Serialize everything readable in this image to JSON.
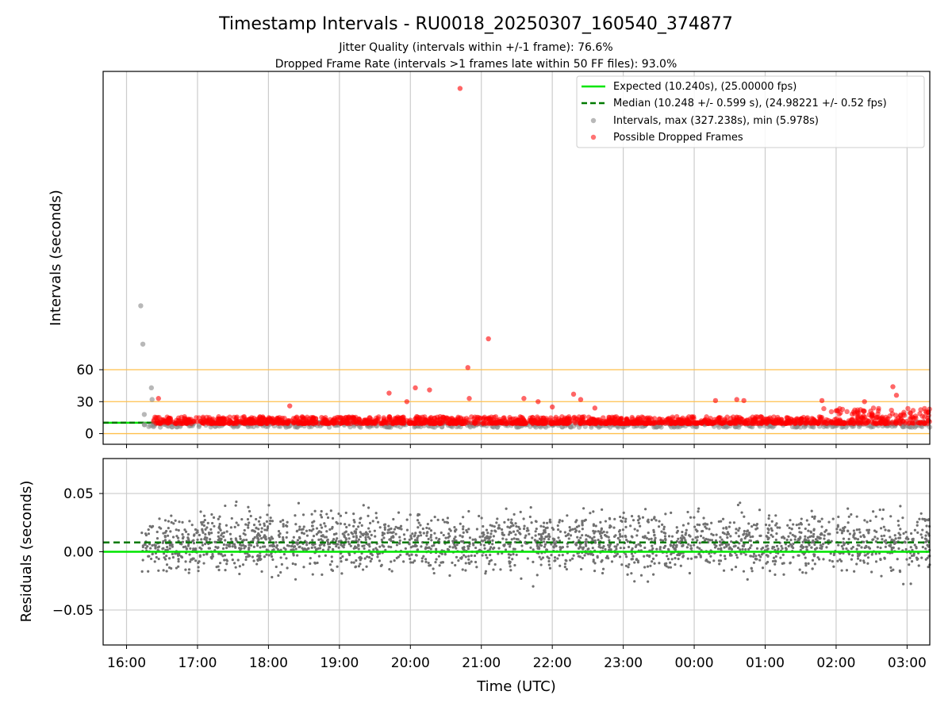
{
  "colors": {
    "expected": "#00e600",
    "median": "#007a00",
    "intervals": "#888888",
    "dropped": "#ff0000",
    "threshold": "#ffc04c",
    "grid": "#cccccc",
    "residuals": "#707070"
  },
  "chart_data": [
    {
      "type": "scatter",
      "title": "Timestamp Intervals - RU0018_20250307_160540_374877",
      "subtitle1": "Jitter Quality (intervals within +/-1 frame): 76.6%",
      "subtitle2": "Dropped Frame Rate (intervals >1 frames late within 50 FF files): 93.0%",
      "ylabel": "Intervals (seconds)",
      "yticks": [
        "0",
        "30",
        "60"
      ],
      "ytick_values": [
        0,
        30,
        60
      ],
      "threshold_lines": [
        0,
        30,
        60
      ],
      "xticks": [
        "16:00",
        "17:00",
        "18:00",
        "19:00",
        "20:00",
        "21:00",
        "22:00",
        "23:00",
        "00:00",
        "01:00",
        "02:00",
        "03:00"
      ],
      "xlim_hours": [
        15.67,
        27.32
      ],
      "ylim": [
        -10,
        340
      ],
      "grid": "vertical",
      "legend_placement": "top-right",
      "legend": {
        "expected": "Expected (10.240s), (25.00000 fps)",
        "median": "Median (10.248 +/- 0.599 s), (24.98221 +/- 0.52 fps)",
        "intervals": "Intervals, max (327.238s), min (5.978s)",
        "dropped": "Possible Dropped Frames"
      },
      "expected_value": 10.24,
      "median_value": 10.248,
      "series": [
        {
          "name": "Intervals, max (327.238s), min (5.978s)",
          "kind": "intervals",
          "typical_range": [
            6,
            11
          ],
          "outlier_hours": [
            16.2,
            16.23,
            16.35,
            16.36,
            16.25
          ],
          "outlier_values": [
            120,
            84,
            43,
            32,
            18
          ]
        },
        {
          "name": "Possible Dropped Frames",
          "kind": "dropped",
          "typical_range": [
            9.5,
            16
          ],
          "outlier_hours": [
            16.45,
            18.3,
            19.7,
            19.95,
            20.07,
            20.27,
            20.7,
            20.81,
            20.83,
            21.1,
            21.6,
            21.8,
            22.0,
            22.3,
            22.4,
            22.6,
            24.3,
            24.6,
            24.7,
            25.8,
            26.4,
            26.8,
            26.85
          ],
          "outlier_values": [
            33,
            26,
            38,
            30,
            43,
            41,
            324,
            62,
            33,
            89,
            33,
            30,
            25,
            37,
            32,
            24,
            31,
            32,
            31,
            31,
            30,
            44,
            36
          ]
        }
      ]
    },
    {
      "type": "scatter",
      "ylabel": "Residuals (seconds)",
      "xlabel": "Time (UTC)",
      "yticks": [
        "−0.05",
        "0.00",
        "0.05"
      ],
      "ytick_values": [
        -0.05,
        0,
        0.05
      ],
      "xticks": [
        "16:00",
        "17:00",
        "18:00",
        "19:00",
        "20:00",
        "21:00",
        "22:00",
        "23:00",
        "00:00",
        "01:00",
        "02:00",
        "03:00"
      ],
      "xlim_hours": [
        15.67,
        27.32
      ],
      "ylim": [
        -0.08,
        0.08
      ],
      "grid": "both",
      "expected_value": 0.0,
      "median_value": 0.008,
      "series": [
        {
          "name": "",
          "kind": "residuals",
          "x_range_hours": [
            16.2,
            27.32
          ],
          "center": 0.008,
          "spread": 0.02
        }
      ]
    }
  ]
}
